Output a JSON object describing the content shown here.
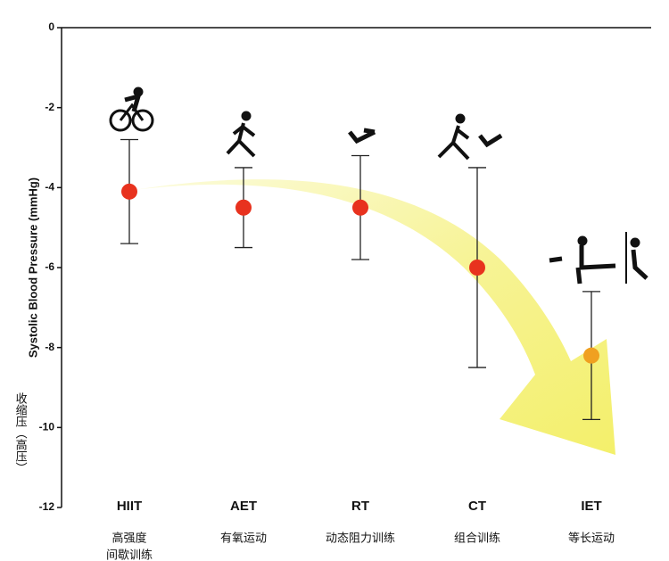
{
  "chart_data": {
    "type": "errorbar",
    "y_label": "Systolic Blood Pressure (mmHg)",
    "y_label_cn": "收缩压（高压）",
    "categories": [
      "HIIT",
      "AET",
      "RT",
      "CT",
      "IET"
    ],
    "category_notes": [
      [
        "高强度",
        "间歇训练"
      ],
      [
        "有氧运动"
      ],
      [
        "动态阻力训练"
      ],
      [
        "组合训练"
      ],
      [
        "等长运动"
      ]
    ],
    "values": [
      -4.1,
      -4.5,
      -4.5,
      -6.0,
      -8.2
    ],
    "errors": [
      1.3,
      1.0,
      1.3,
      2.5,
      1.6
    ],
    "colors": [
      "#e8321e",
      "#e8321e",
      "#e8321e",
      "#e8321e",
      "#f0a020"
    ],
    "ylim": [
      -12,
      0
    ],
    "yticks": [
      0,
      -2,
      -4,
      -6,
      -8,
      -10,
      -12
    ]
  }
}
